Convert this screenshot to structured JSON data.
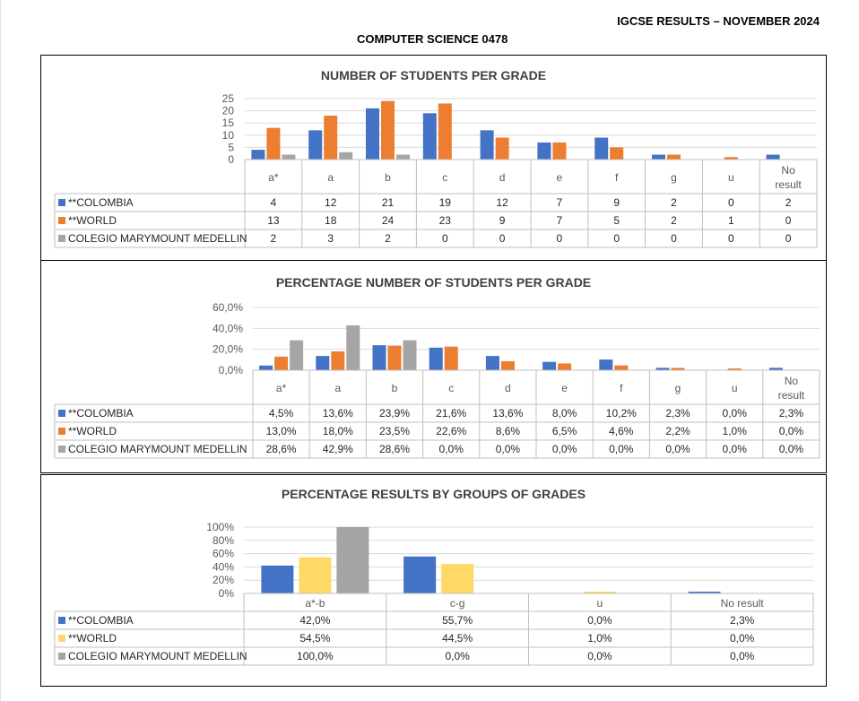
{
  "header": {
    "right_title": "IGCSE RESULTS – NOVEMBER 2024",
    "subject": "COMPUTER SCIENCE 0478"
  },
  "colors": {
    "colombia": "#4472C4",
    "world": "#ED7D31",
    "world_groups": "#FFD966",
    "marymount": "#A5A5A5",
    "gridline": "#D9D9D9",
    "table_border": "#BFBFBF",
    "axis_text": "#595959",
    "title_text": "#404040"
  },
  "chart_data": [
    {
      "type": "bar",
      "title": "NUMBER OF STUDENTS PER GRADE",
      "categories": [
        "a*",
        "a",
        "b",
        "c",
        "d",
        "e",
        "f",
        "g",
        "u",
        "No result"
      ],
      "ylim": [
        0,
        25
      ],
      "yticks": [
        "0",
        "5",
        "10",
        "15",
        "20",
        "25"
      ],
      "ytick_values": [
        0,
        5,
        10,
        15,
        20,
        25
      ],
      "series": [
        {
          "name": "**COLOMBIA",
          "values": [
            4,
            12,
            21,
            19,
            12,
            7,
            9,
            2,
            0,
            2
          ],
          "labels": [
            "4",
            "12",
            "21",
            "19",
            "12",
            "7",
            "9",
            "2",
            "0",
            "2"
          ]
        },
        {
          "name": "**WORLD",
          "values": [
            13,
            18,
            24,
            23,
            9,
            7,
            5,
            2,
            1,
            0
          ],
          "labels": [
            "13",
            "18",
            "24",
            "23",
            "9",
            "7",
            "5",
            "2",
            "1",
            "0"
          ]
        },
        {
          "name": "COLEGIO MARYMOUNT MEDELLIN",
          "values": [
            2,
            3,
            2,
            0,
            0,
            0,
            0,
            0,
            0,
            0
          ],
          "labels": [
            "2",
            "3",
            "2",
            "0",
            "0",
            "0",
            "0",
            "0",
            "0",
            "0"
          ]
        }
      ],
      "grid": true,
      "legend": "data-table"
    },
    {
      "type": "bar",
      "title": "PERCENTAGE NUMBER OF STUDENTS PER GRADE",
      "categories": [
        "a*",
        "a",
        "b",
        "c",
        "d",
        "e",
        "f",
        "g",
        "u",
        "No result"
      ],
      "ylim": [
        0,
        60
      ],
      "yticks": [
        "0,0%",
        "20,0%",
        "40,0%",
        "60,0%"
      ],
      "ytick_values": [
        0,
        20,
        40,
        60
      ],
      "series": [
        {
          "name": "**COLOMBIA",
          "values": [
            4.5,
            13.6,
            23.9,
            21.6,
            13.6,
            8.0,
            10.2,
            2.3,
            0.0,
            2.3
          ],
          "labels": [
            "4,5%",
            "13,6%",
            "23,9%",
            "21,6%",
            "13,6%",
            "8,0%",
            "10,2%",
            "2,3%",
            "0,0%",
            "2,3%"
          ]
        },
        {
          "name": "**WORLD",
          "values": [
            13.0,
            18.0,
            23.5,
            22.6,
            8.6,
            6.5,
            4.6,
            2.2,
            1.0,
            0.0
          ],
          "labels": [
            "13,0%",
            "18,0%",
            "23,5%",
            "22,6%",
            "8,6%",
            "6,5%",
            "4,6%",
            "2,2%",
            "1,0%",
            "0,0%"
          ]
        },
        {
          "name": "COLEGIO MARYMOUNT MEDELLIN",
          "values": [
            28.6,
            42.9,
            28.6,
            0.0,
            0.0,
            0.0,
            0.0,
            0.0,
            0.0,
            0.0
          ],
          "labels": [
            "28,6%",
            "42,9%",
            "28,6%",
            "0,0%",
            "0,0%",
            "0,0%",
            "0,0%",
            "0,0%",
            "0,0%",
            "0,0%"
          ]
        }
      ],
      "grid": true,
      "legend": "data-table"
    },
    {
      "type": "bar",
      "title": "PERCENTAGE RESULTS BY GROUPS OF GRADES",
      "categories": [
        "a*-b",
        "c-g",
        "u",
        "No result"
      ],
      "ylim": [
        0,
        100
      ],
      "yticks": [
        "0%",
        "20%",
        "40%",
        "60%",
        "80%",
        "100%"
      ],
      "ytick_values": [
        0,
        20,
        40,
        60,
        80,
        100
      ],
      "series": [
        {
          "name": "**COLOMBIA",
          "values": [
            42.0,
            55.7,
            0.0,
            2.3
          ],
          "labels": [
            "42,0%",
            "55,7%",
            "0,0%",
            "2,3%"
          ]
        },
        {
          "name": "**WORLD",
          "values": [
            54.5,
            44.5,
            1.0,
            0.0
          ],
          "labels": [
            "54,5%",
            "44,5%",
            "1,0%",
            "0,0%"
          ]
        },
        {
          "name": "COLEGIO MARYMOUNT MEDELLIN",
          "values": [
            100.0,
            0.0,
            0.0,
            0.0
          ],
          "labels": [
            "100,0%",
            "0,0%",
            "0,0%",
            "0,0%"
          ]
        }
      ],
      "grid": true,
      "legend": "data-table"
    }
  ]
}
